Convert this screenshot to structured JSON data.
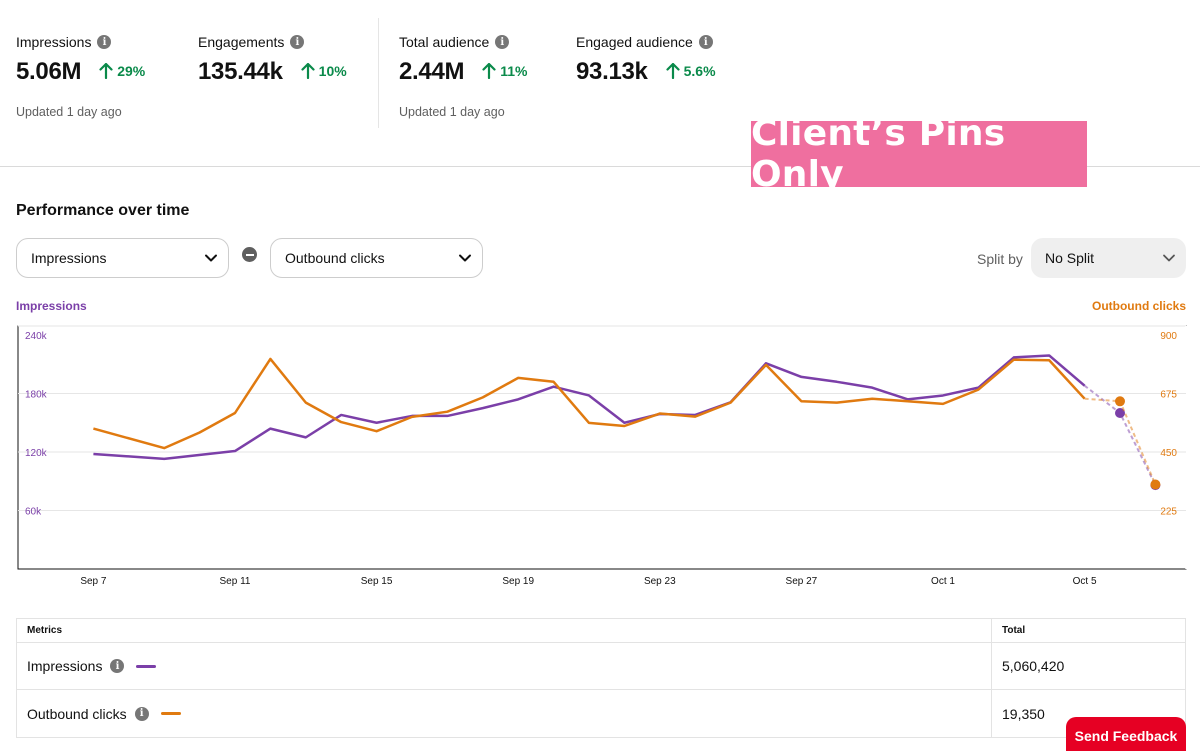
{
  "kpis": {
    "impressions": {
      "label": "Impressions",
      "value": "5.06M",
      "delta": "29%"
    },
    "engagements": {
      "label": "Engagements",
      "value": "135.44k",
      "delta": "10%"
    },
    "total_audience": {
      "label": "Total audience",
      "value": "2.44M",
      "delta": "11%"
    },
    "engaged_audience": {
      "label": "Engaged audience",
      "value": "93.13k",
      "delta": "5.6%"
    },
    "updated_left": "Updated 1 day ago",
    "updated_right": "Updated 1 day ago"
  },
  "banner": {
    "text": "Client’s Pins Only"
  },
  "performance": {
    "title": "Performance over time",
    "metric_1": "Impressions",
    "metric_2": "Outbound clicks",
    "split_label": "Split by",
    "split_value": "No Split"
  },
  "colors": {
    "impressions": "#7b3fa8",
    "outbound_clicks": "#e07a10",
    "positive": "#0a8a4a",
    "banner": "#ef6f9f",
    "feedback": "#e60023"
  },
  "chart_data": {
    "type": "line",
    "x": [
      "Sep 6",
      "Sep 7",
      "Sep 8",
      "Sep 9",
      "Sep 10",
      "Sep 11",
      "Sep 12",
      "Sep 13",
      "Sep 14",
      "Sep 15",
      "Sep 16",
      "Sep 17",
      "Sep 18",
      "Sep 19",
      "Sep 20",
      "Sep 21",
      "Sep 22",
      "Sep 23",
      "Sep 24",
      "Sep 25",
      "Sep 26",
      "Sep 27",
      "Sep 28",
      "Sep 29",
      "Sep 30",
      "Oct 1",
      "Oct 2",
      "Oct 3",
      "Oct 4",
      "Oct 5",
      "Oct 6",
      "Oct 7"
    ],
    "x_tick_labels": [
      "Sep 7",
      "Sep 11",
      "Sep 15",
      "Sep 19",
      "Sep 23",
      "Sep 27",
      "Oct 1",
      "Oct 5"
    ],
    "y_left": {
      "label": "Impressions",
      "ticks": [
        "240k",
        "180k",
        "120k",
        "60k"
      ],
      "range": [
        0,
        240000
      ]
    },
    "y_right": {
      "label": "Outbound clicks",
      "ticks": [
        "900",
        "675",
        "450",
        "225"
      ],
      "range": [
        0,
        900
      ]
    },
    "series": [
      {
        "name": "Impressions",
        "axis": "left",
        "values": [
          null,
          118000,
          null,
          113000,
          null,
          121000,
          144000,
          135000,
          158000,
          150000,
          157000,
          157000,
          165000,
          174000,
          187000,
          178000,
          150000,
          159000,
          158000,
          171000,
          211000,
          197000,
          192000,
          186000,
          174000,
          178000,
          186000,
          217000,
          219000,
          188000,
          160000,
          86000
        ]
      },
      {
        "name": "Outbound clicks",
        "axis": "right",
        "values": [
          null,
          540,
          null,
          465,
          525,
          600,
          808,
          640,
          565,
          530,
          585,
          605,
          660,
          735,
          720,
          562,
          550,
          598,
          586,
          640,
          785,
          645,
          640,
          655,
          645,
          635,
          690,
          805,
          803,
          655,
          645,
          325
        ]
      }
    ],
    "projected_from_index": 29,
    "grid": true
  },
  "metrics_table": {
    "col_metric": "Metrics",
    "col_total": "Total",
    "rows": [
      {
        "label": "Impressions",
        "total": "5,060,420"
      },
      {
        "label": "Outbound clicks",
        "total": "19,350"
      }
    ]
  },
  "feedback": {
    "label": "Send Feedback"
  }
}
